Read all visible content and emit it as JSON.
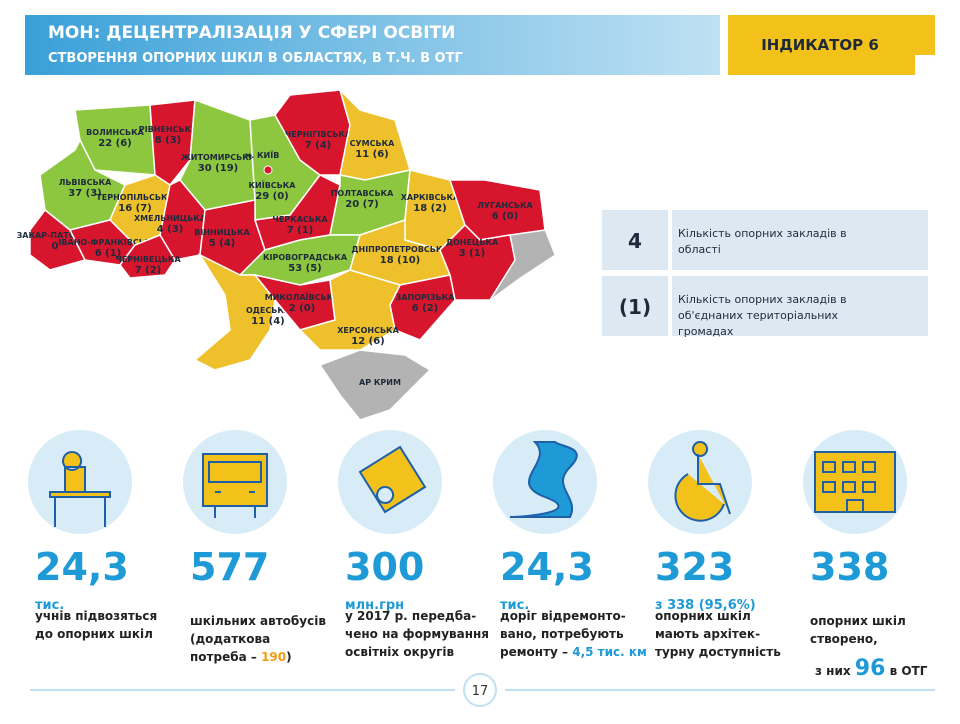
{
  "header": {
    "title": "МОН: ДЕЦЕНТРАЛІЗАЦІЯ У СФЕРІ ОСВІТИ",
    "subtitle": "СТВОРЕННЯ ОПОРНИХ ШКІЛ В ОБЛАСТЯХ, В Т.Ч. В ОТГ",
    "indicator": "ІНДИКАТОР 6"
  },
  "map": {
    "capital": "м. КИЇВ",
    "regions": [
      {
        "name": "ВОЛИНСЬКА",
        "value": "22 (6)",
        "color": "#8dc63f"
      },
      {
        "name": "РІВНЕНСЬКА",
        "value": "8 (3)",
        "color": "#d7162e"
      },
      {
        "name": "ЖИТОМИРСЬКА",
        "value": "30 (19)",
        "color": "#8dc63f"
      },
      {
        "name": "КИЇВСЬКА",
        "value": "29 (0)",
        "color": "#8dc63f"
      },
      {
        "name": "ЧЕРНІГІВСЬКА",
        "value": "7 (4)",
        "color": "#d7162e"
      },
      {
        "name": "СУМСЬКА",
        "value": "11 (6)",
        "color": "#eec12c"
      },
      {
        "name": "ЛЬВІВСЬКА",
        "value": "37 (3)",
        "color": "#8dc63f"
      },
      {
        "name": "ТЕРНОПІЛЬСЬКА",
        "value": "16 (7)",
        "color": "#eec12c"
      },
      {
        "name": "ХМЕЛЬНИЦЬКА",
        "value": "4 (3)",
        "color": "#d7162e"
      },
      {
        "name": "ВІННИЦЬКА",
        "value": "5 (4)",
        "color": "#d7162e"
      },
      {
        "name": "ЧЕРКАСЬКА",
        "value": "7 (1)",
        "color": "#d7162e"
      },
      {
        "name": "ПОЛТАВСЬКА",
        "value": "20 (7)",
        "color": "#8dc63f"
      },
      {
        "name": "ХАРКІВСЬКА",
        "value": "18 (2)",
        "color": "#eec12c"
      },
      {
        "name": "ЛУГАНСЬКА",
        "value": "6 (0)",
        "color": "#d7162e"
      },
      {
        "name": "ЗАКАР-ПАТСЬКА",
        "value": "0",
        "color": "#d7162e"
      },
      {
        "name": "ІВАНО-ФРАНКІВСЬКА",
        "value": "6 (1)",
        "color": "#d7162e"
      },
      {
        "name": "ЧЕРНІВЕЦЬКА",
        "value": "7 (2)",
        "color": "#d7162e"
      },
      {
        "name": "КІРОВОГРАДСЬКА",
        "value": "53 (5)",
        "color": "#8dc63f"
      },
      {
        "name": "ДНІПРОПЕТРОВСЬКА",
        "value": "18 (10)",
        "color": "#eec12c"
      },
      {
        "name": "ДОНЕЦЬКА",
        "value": "3 (1)",
        "color": "#d7162e"
      },
      {
        "name": "ОДЕСЬКА",
        "value": "11 (4)",
        "color": "#eec12c"
      },
      {
        "name": "МИКОЛАЇВСЬКА",
        "value": "2 (0)",
        "color": "#d7162e"
      },
      {
        "name": "ЗАПОРІЗЬКА",
        "value": "6 (2)",
        "color": "#d7162e"
      },
      {
        "name": "ХЕРСОНСЬКА",
        "value": "12 (6)",
        "color": "#eec12c"
      },
      {
        "name": "АР КРИМ",
        "color": "#b3b3b3"
      }
    ]
  },
  "legend": [
    {
      "symbol": "4",
      "text": "Кількість опорних закладів в області"
    },
    {
      "symbol": "(1)",
      "text": "Кількість опорних закладів в об'єднаних територіальних громадах"
    }
  ],
  "stats": [
    {
      "number": "24,3",
      "unit": "тис.",
      "lines": [
        [
          {
            "text": "учнів підвозяться"
          }
        ],
        [
          {
            "text": "до опорних шкіл"
          }
        ]
      ]
    },
    {
      "number": "577",
      "lines": [
        [
          {
            "text": "шкільних автобусів"
          }
        ],
        [
          {
            "text": "(додаткова"
          }
        ],
        [
          {
            "text": "потреба – "
          },
          {
            "text": "190",
            "style": "orange"
          },
          {
            "text": ")"
          }
        ]
      ]
    },
    {
      "number": "300",
      "unit": "млн.грн",
      "lines": [
        [
          {
            "text": "у 2017 р. передба-"
          }
        ],
        [
          {
            "text": "чено на формування"
          }
        ],
        [
          {
            "text": "освітніх округів"
          }
        ]
      ]
    },
    {
      "number": "24,3",
      "unit": "тис.",
      "lines": [
        [
          {
            "text": "доріг відремонто-"
          }
        ],
        [
          {
            "text": "вано, потребують"
          }
        ],
        [
          {
            "text": "ремонту – "
          },
          {
            "text": "4,5 тис. км",
            "style": "blue"
          }
        ]
      ]
    },
    {
      "number": "323",
      "unit": "з 338 (95,6%)",
      "lines": [
        [
          {
            "text": "опорних шкіл"
          }
        ],
        [
          {
            "text": "мають архітек-"
          }
        ],
        [
          {
            "text": "турну доступність"
          }
        ]
      ]
    },
    {
      "number": "338",
      "lines": [
        [
          {
            "text": "опорних шкіл"
          }
        ],
        [
          {
            "text": "створено,"
          }
        ],
        [
          {
            "text": "з них "
          },
          {
            "text": "96",
            "style": "big"
          },
          {
            "text": " в ОТГ"
          }
        ]
      ]
    }
  ],
  "page_number": "17"
}
